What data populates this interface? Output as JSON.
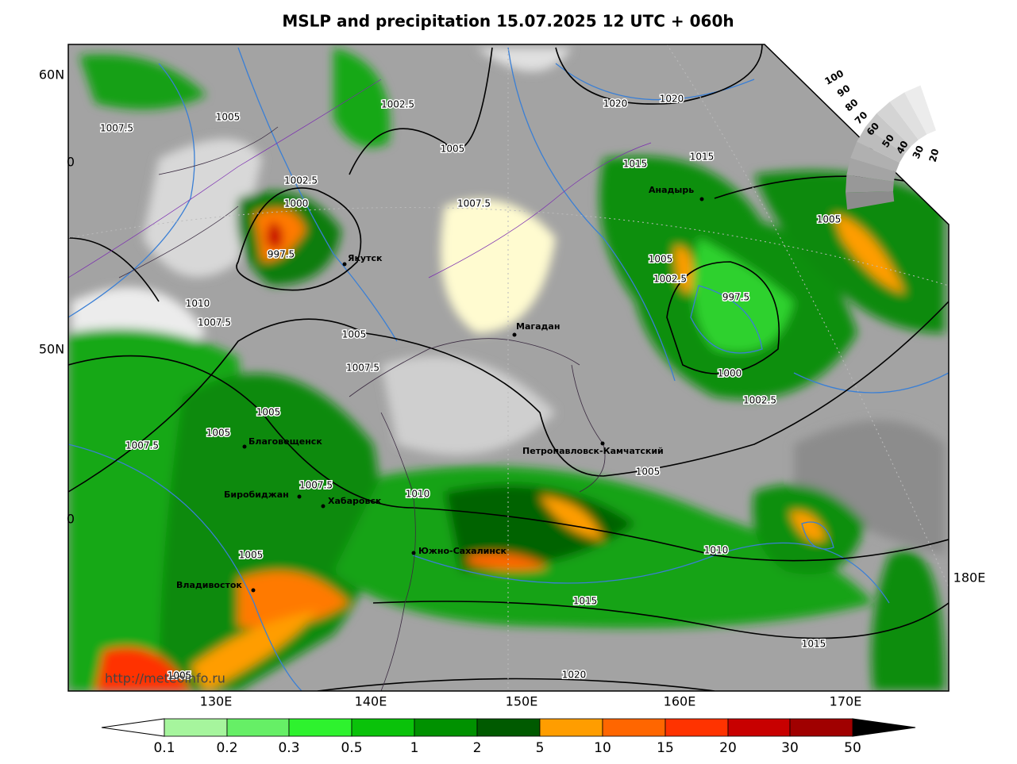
{
  "title": "MSLP and precipitation 15.07.2025 12 UTC + 060h",
  "lat_labels": [
    "60N",
    "50N",
    "0",
    "0"
  ],
  "lon_labels": [
    "130E",
    "140E",
    "150E",
    "160E",
    "170E",
    "180E"
  ],
  "isobar_labels": [
    "1002.5",
    "1005",
    "1007.5",
    "1020",
    "1020",
    "1005",
    "1015",
    "1015",
    "1002.5",
    "1000",
    "1007.5",
    "997.5",
    "1005",
    "1005",
    "1002.5",
    "997.5",
    "1010",
    "1007.5",
    "1005",
    "1007.5",
    "1000",
    "1002.5",
    "1005",
    "1005",
    "1007.5",
    "1007.5",
    "1010",
    "1005",
    "1005",
    "1010",
    "1015",
    "1015",
    "1020",
    "1005"
  ],
  "cities": [
    "Якутск",
    "Магадан",
    "Анадырь",
    "Благовещенск",
    "Петропавловск-Камчатский",
    "Биробиджан",
    "Хабаровск",
    "Южно-Сахалинск",
    "Владивосток"
  ],
  "watermark": "http://meteoinfo.ru",
  "cloud_scale": {
    "labels": [
      "100",
      "90",
      "80",
      "70",
      "60",
      "50",
      "40",
      "30",
      "20"
    ]
  },
  "colorbar": {
    "labels": [
      "0.1",
      "0.2",
      "0.3",
      "0.5",
      "1",
      "2",
      "5",
      "10",
      "15",
      "20",
      "30",
      "50"
    ]
  }
}
